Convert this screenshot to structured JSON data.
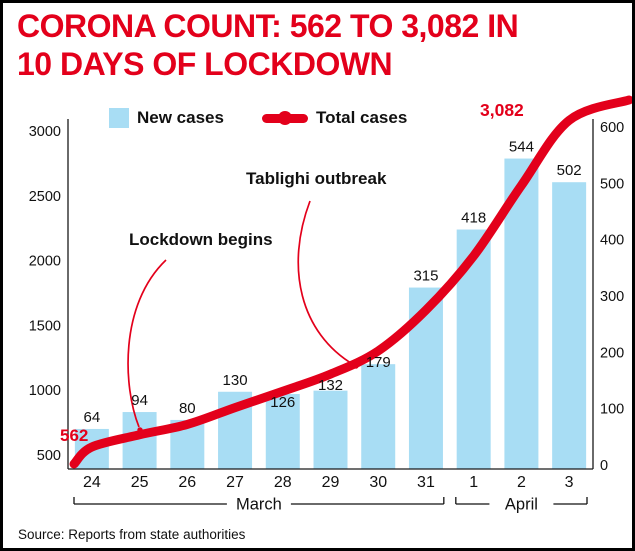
{
  "title": {
    "line1": "CORONA COUNT: 562 TO 3,082 IN",
    "line2": "10 DAYS OF LOCKDOWN"
  },
  "legend": {
    "new_cases_label": "New cases",
    "total_cases_label": "Total cases"
  },
  "annotations": {
    "lockdown_label": "Lockdown begins",
    "tablighi_label": "Tablighi outbreak",
    "start_total_label": "562",
    "end_total_label": "3,082"
  },
  "source": "Source: Reports from state authorities",
  "colors": {
    "accent_red": "#e3001b",
    "bar_blue": "#a8ddf4",
    "ink": "#111111"
  },
  "chart_data": {
    "type": "bar+line",
    "categories": [
      "24",
      "25",
      "26",
      "27",
      "28",
      "29",
      "30",
      "31",
      "1",
      "2",
      "3"
    ],
    "month_groups": [
      {
        "label": "March",
        "from": 0,
        "to": 7
      },
      {
        "label": "April",
        "from": 8,
        "to": 10
      }
    ],
    "series": [
      {
        "name": "New cases",
        "type": "bar",
        "axis": "right",
        "values": [
          64,
          94,
          80,
          130,
          126,
          132,
          179,
          315,
          418,
          544,
          502
        ]
      },
      {
        "name": "Total cases",
        "type": "line",
        "axis": "left",
        "values": [
          562,
          656,
          736,
          866,
          992,
          1124,
          1303,
          1618,
          2036,
          2580,
          3082
        ]
      }
    ],
    "left_axis": {
      "ticks": [
        500,
        1000,
        1500,
        2000,
        2500,
        3000
      ],
      "range": [
        500,
        3082
      ]
    },
    "right_axis": {
      "ticks": [
        0,
        100,
        200,
        300,
        400,
        500,
        600
      ],
      "range": [
        0,
        600
      ]
    },
    "title": "CORONA COUNT: 562 TO 3,082 IN 10 DAYS OF LOCKDOWN",
    "legend_position": "top",
    "grid": false
  }
}
